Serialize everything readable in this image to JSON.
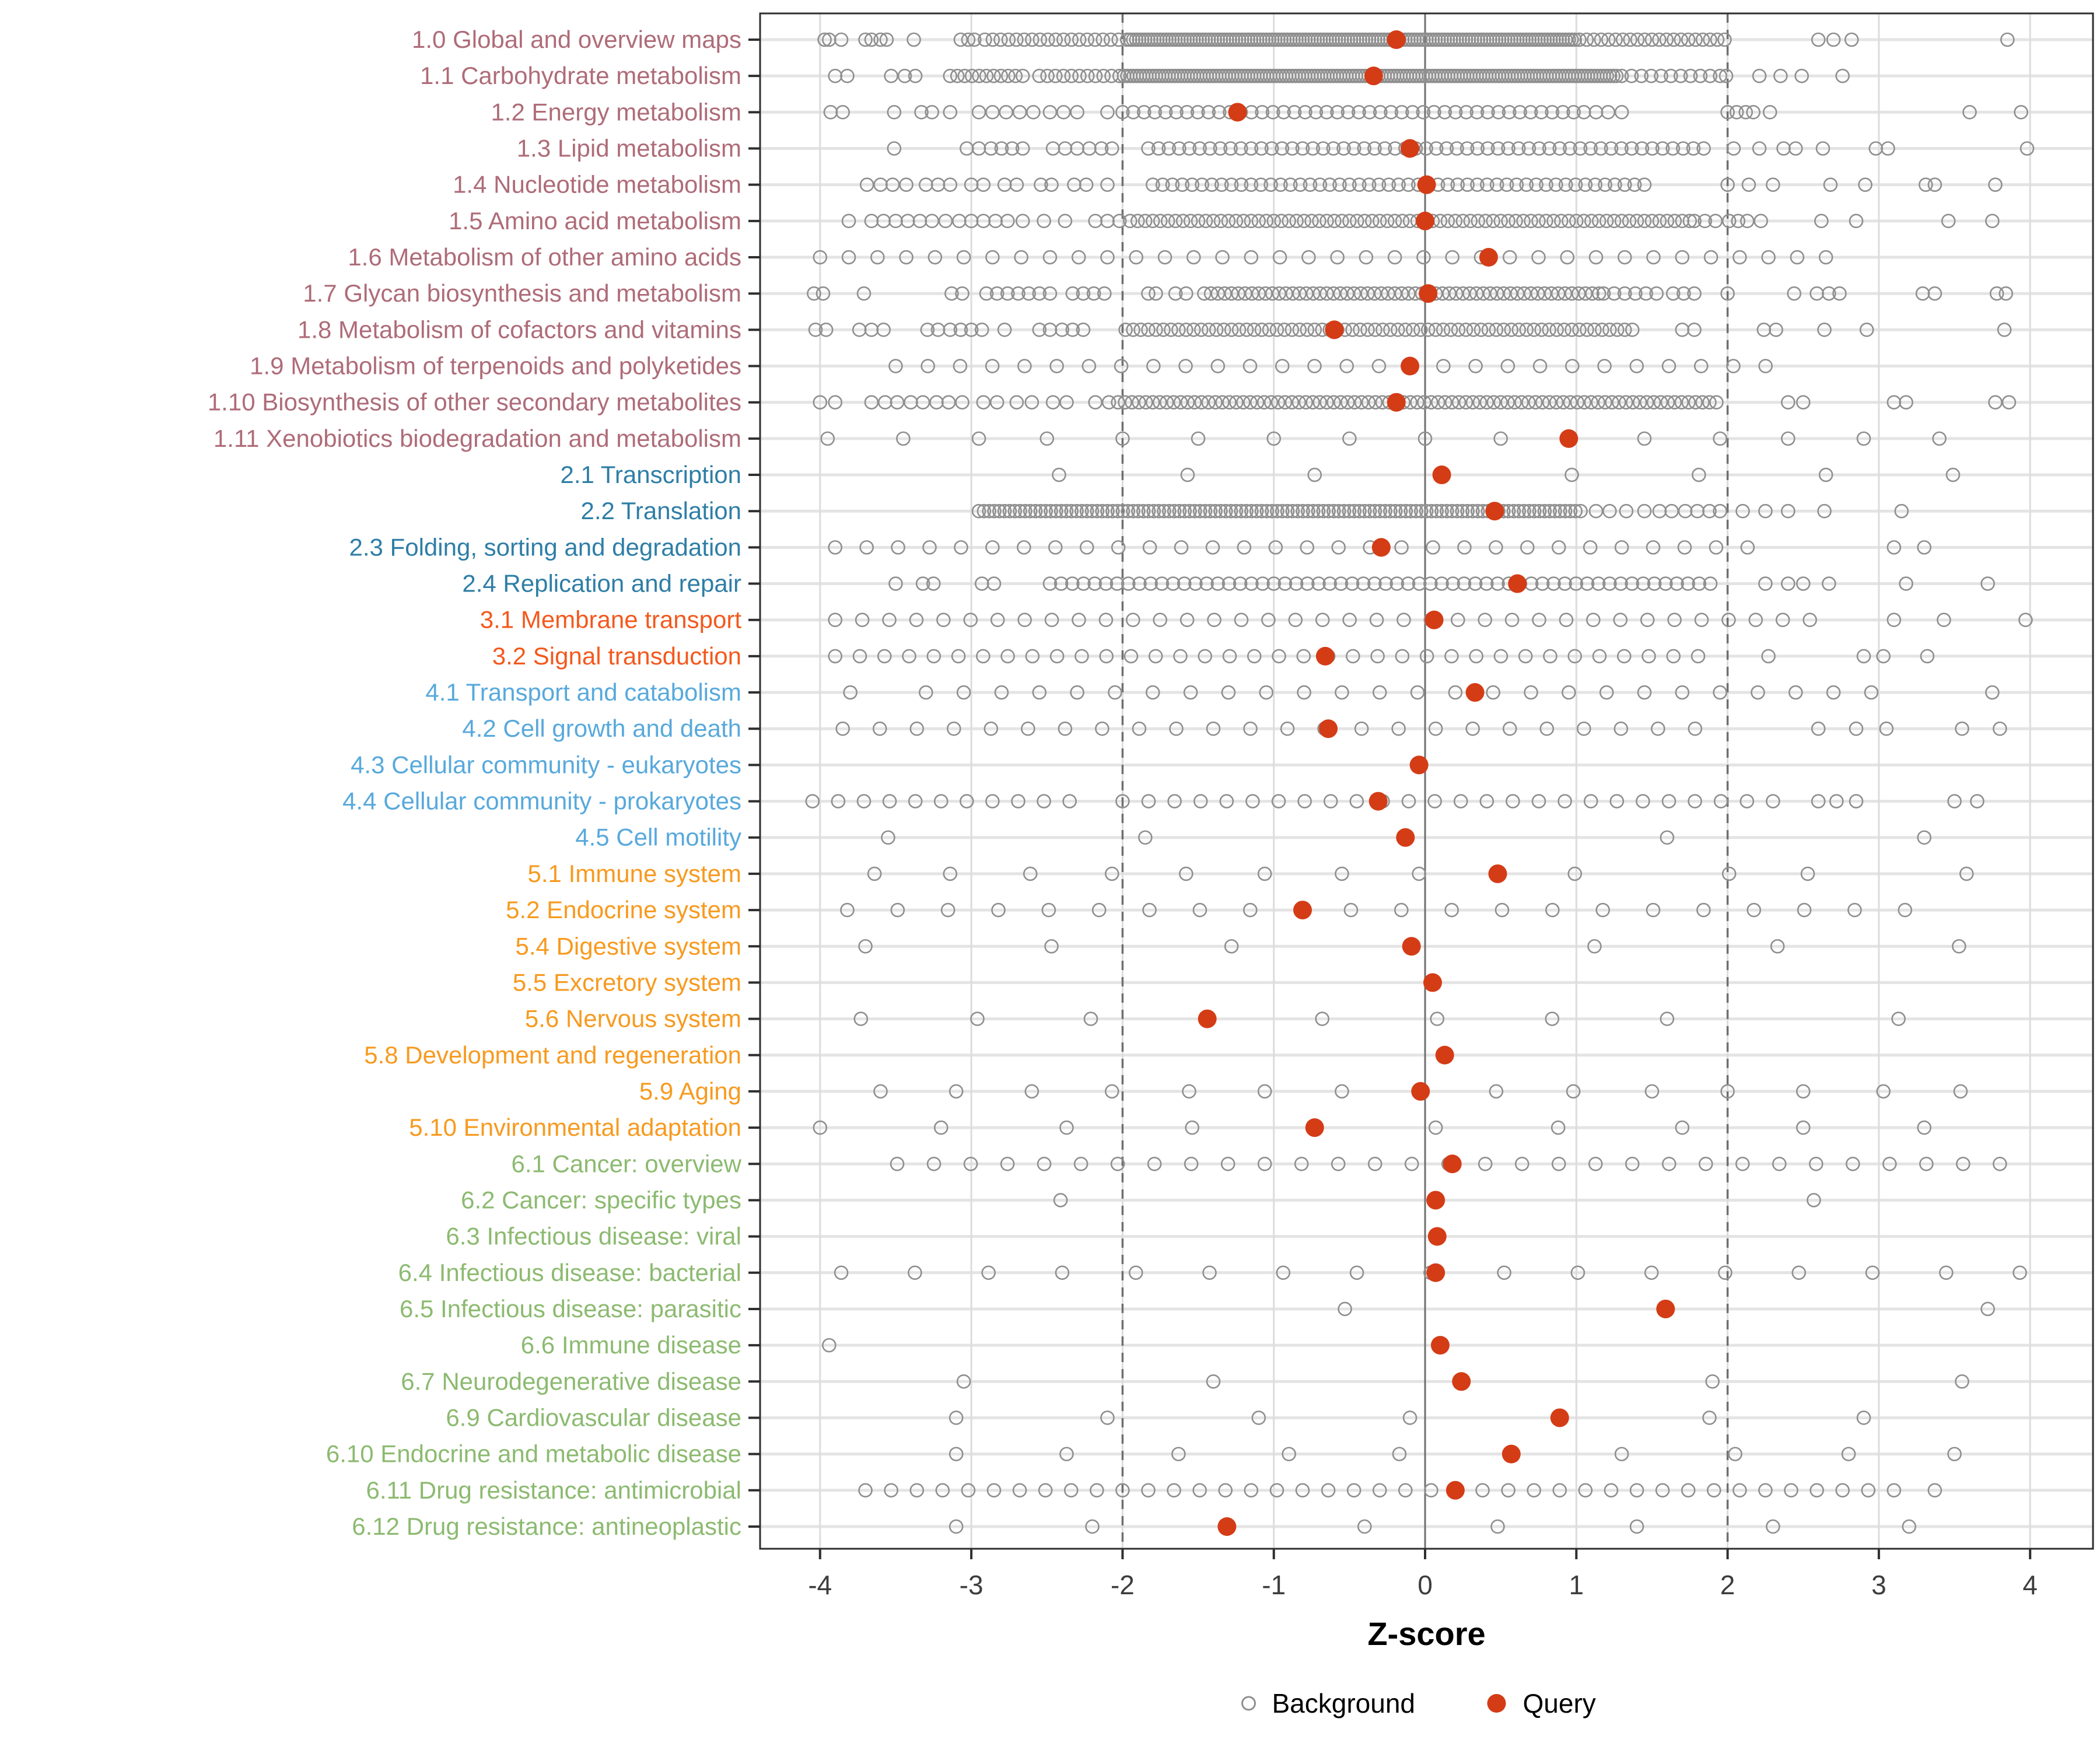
{
  "chart_data": {
    "type": "scatter",
    "title": "",
    "xlabel": "Z-score",
    "xlim": [
      -4.4,
      4.42
    ],
    "x_ticks": [
      -4,
      -3,
      -2,
      -1,
      0,
      1,
      2,
      3,
      4
    ],
    "grid": true,
    "reference_lines": {
      "solid_at": 0,
      "dashed_at": [
        -2,
        2
      ]
    },
    "legend_position": "bottom-center",
    "legend": [
      {
        "label": "Background",
        "marker": "open-circle",
        "color": "#8f8f8f"
      },
      {
        "label": "Query",
        "marker": "filled-circle",
        "color": "#d43c16"
      }
    ],
    "colors": {
      "query": "#d43c16",
      "background_stroke": "#8f8f8f",
      "grid_light": "#dcdcdc",
      "row_guide": "#e4e4e4",
      "reference_dark": "#6f6f6f",
      "panel_border": "#2f2f2f",
      "axis_text": "#3d3d3d"
    },
    "group_colors": {
      "metabolism": "#ae6c78",
      "genetic_information_processing": "#2e7ea6",
      "environmental_information_processing": "#f3591d",
      "cellular_processes": "#58a9dc",
      "organismal_systems": "#f79a1f",
      "human_diseases": "#8cba70"
    },
    "rows": [
      {
        "label": "1.0 Global and overview maps",
        "group": "metabolism",
        "query": -0.19,
        "bg_points": [
          -3.97,
          -3.94,
          -3.86,
          -3.7,
          -3.66,
          -3.6,
          -3.56,
          -3.38,
          -3.07,
          -3.02,
          -2.98,
          2.6,
          2.7,
          2.82,
          3.85
        ],
        "bg_bands": [
          [
            -2.91,
            -2.02,
            0.052
          ],
          [
            -1.97,
            1.0,
            0.02
          ],
          [
            1.02,
            1.98,
            0.048
          ]
        ]
      },
      {
        "label": "1.1 Carbohydrate metabolism",
        "group": "metabolism",
        "query": -0.34,
        "bg_points": [
          -3.9,
          -3.82,
          -3.53,
          -3.44,
          -3.37,
          1.99,
          2.21,
          2.35,
          2.49,
          2.76
        ],
        "bg_bands": [
          [
            -3.14,
            -2.66,
            0.048
          ],
          [
            -2.55,
            -2.02,
            0.053
          ],
          [
            -1.99,
            1.28,
            0.021
          ],
          [
            1.3,
            1.95,
            0.065
          ]
        ]
      },
      {
        "label": "1.2 Energy metabolism",
        "group": "metabolism",
        "query": -1.24,
        "bg_points": [
          -3.93,
          -3.85,
          -3.51,
          -3.33,
          -3.26,
          -3.14,
          -2.95,
          -2.86,
          -2.77,
          -2.68,
          -2.59,
          -2.48,
          -2.39,
          -2.3,
          -2.1,
          1.05,
          1.13,
          1.21,
          1.3,
          2.0,
          2.06,
          2.12,
          2.17,
          2.28,
          3.6,
          3.94
        ],
        "bg_bands": [
          [
            -2.0,
            1.0,
            0.071
          ]
        ]
      },
      {
        "label": "1.3 Lipid metabolism",
        "group": "metabolism",
        "query": -0.1,
        "bg_points": [
          -3.51,
          -3.03,
          -2.95,
          -2.87,
          -2.8,
          -2.73,
          -2.66,
          -2.46,
          -2.38,
          -2.3,
          -2.22,
          -2.14,
          -2.07,
          2.04,
          2.21,
          2.37,
          2.45,
          2.63,
          2.98,
          3.06,
          3.98
        ],
        "bg_bands": [
          [
            -1.83,
            1.9,
            0.068
          ]
        ]
      },
      {
        "label": "1.4 Nucleotide metabolism",
        "group": "metabolism",
        "query": 0.01,
        "bg_points": [
          -3.69,
          -3.6,
          -3.52,
          -3.43,
          -3.3,
          -3.22,
          -3.14,
          -3.0,
          -2.92,
          -2.78,
          -2.7,
          -2.54,
          -2.47,
          -2.32,
          -2.24,
          -2.1,
          2.0,
          2.14,
          2.3,
          2.68,
          2.91,
          3.31,
          3.37,
          3.77
        ],
        "bg_bands": [
          [
            -1.8,
            1.45,
            0.065
          ]
        ]
      },
      {
        "label": "1.5 Amino acid metabolism",
        "group": "metabolism",
        "query": 0.0,
        "bg_points": [
          -3.81,
          -3.66,
          -3.58,
          -3.5,
          -3.42,
          -3.34,
          -3.26,
          -3.17,
          -3.08,
          -3.0,
          -2.92,
          -2.84,
          -2.76,
          -2.66,
          -2.52,
          -2.38,
          -2.18,
          -2.1,
          -2.02,
          1.78,
          1.85,
          1.92,
          2.01,
          2.07,
          2.13,
          2.22,
          2.62,
          2.85,
          3.46,
          3.75
        ],
        "bg_bands": [
          [
            -1.95,
            1.75,
            0.05
          ]
        ]
      },
      {
        "label": "1.6 Metabolism of other amino acids",
        "group": "metabolism",
        "query": 0.42,
        "bg_points": [],
        "bg_bands": [
          [
            -4.0,
            2.68,
            0.19
          ]
        ]
      },
      {
        "label": "1.7 Glycan biosynthesis and metabolism",
        "group": "metabolism",
        "query": 0.02,
        "bg_points": [
          -4.04,
          -3.98,
          -3.71,
          -3.13,
          -3.06,
          -2.9,
          -2.83,
          -2.76,
          -2.69,
          -2.62,
          -2.55,
          -2.48,
          -2.33,
          -2.26,
          -2.19,
          -2.12,
          -1.83,
          -1.78,
          -1.65,
          -1.58,
          1.18,
          1.25,
          1.32,
          1.39,
          1.46,
          1.53,
          1.64,
          1.71,
          1.78,
          2.0,
          2.44,
          2.59,
          2.67,
          2.74,
          3.29,
          3.37,
          3.78,
          3.84
        ],
        "bg_bands": [
          [
            -1.46,
            1.16,
            0.045
          ]
        ]
      },
      {
        "label": "1.8 Metabolism of cofactors and vitamins",
        "group": "metabolism",
        "query": -0.6,
        "bg_points": [
          -4.03,
          -3.96,
          -3.74,
          -3.66,
          -3.58,
          -3.29,
          -3.22,
          -3.14,
          -3.07,
          -3.0,
          -2.93,
          -2.78,
          -2.55,
          -2.48,
          -2.4,
          -2.33,
          -2.26,
          1.7,
          1.78,
          2.24,
          2.32,
          2.64,
          2.92,
          3.83
        ],
        "bg_bands": [
          [
            -1.98,
            1.4,
            0.05
          ]
        ]
      },
      {
        "label": "1.9 Metabolism of terpenoids and polyketides",
        "group": "metabolism",
        "query": -0.1,
        "bg_points": [],
        "bg_bands": [
          [
            -3.5,
            2.35,
            0.213
          ]
        ]
      },
      {
        "label": "1.10 Biosynthesis of other secondary metabolites",
        "group": "metabolism",
        "query": -0.19,
        "bg_points": [
          -4.0,
          -3.9,
          -3.66,
          -3.57,
          -3.49,
          -3.4,
          -3.32,
          -3.23,
          -3.15,
          -3.06,
          -2.92,
          -2.83,
          -2.7,
          -2.6,
          -2.46,
          -2.37,
          -2.18,
          -2.09,
          2.4,
          2.5,
          3.1,
          3.18,
          3.77,
          3.86
        ],
        "bg_bands": [
          [
            -2.03,
            1.95,
            0.046
          ]
        ]
      },
      {
        "label": "1.11 Xenobiotics biodegradation and metabolism",
        "group": "metabolism",
        "query": 0.95,
        "bg_points": [
          -3.95,
          -3.45,
          -2.95,
          -2.5,
          -2.0,
          -1.5,
          -1.0,
          -0.5,
          0.0,
          0.5,
          1.45,
          1.95,
          2.4,
          2.9,
          3.4
        ],
        "bg_bands": []
      },
      {
        "label": "2.1 Transcription",
        "group": "genetic_information_processing",
        "query": 0.11,
        "bg_points": [
          -2.42,
          -1.57,
          -0.73,
          0.97,
          1.81,
          2.65,
          3.49
        ],
        "bg_bands": []
      },
      {
        "label": "2.2 Translation",
        "group": "genetic_information_processing",
        "query": 0.46,
        "bg_points": [
          1.13,
          1.22,
          1.33,
          1.45,
          1.55,
          1.63,
          1.72,
          1.8,
          1.88,
          1.95,
          2.1,
          2.25,
          2.4,
          2.64,
          3.15
        ],
        "bg_bands": [
          [
            -2.95,
            1.05,
            0.034
          ]
        ]
      },
      {
        "label": "2.3 Folding, sorting and degradation",
        "group": "genetic_information_processing",
        "query": -0.29,
        "bg_points": [
          3.1,
          3.3
        ],
        "bg_bands": [
          [
            -3.9,
            2.3,
            0.208
          ]
        ]
      },
      {
        "label": "2.4 Replication and repair",
        "group": "genetic_information_processing",
        "query": 0.61,
        "bg_points": [
          -3.5,
          -3.32,
          -3.25,
          -2.93,
          -2.85,
          2.25,
          2.4,
          2.5,
          2.67,
          3.18,
          3.72
        ],
        "bg_bands": [
          [
            -2.48,
            1.95,
            0.074
          ]
        ]
      },
      {
        "label": "3.1 Membrane transport",
        "group": "environmental_information_processing",
        "query": 0.06,
        "bg_points": [
          3.1,
          3.43,
          3.97
        ],
        "bg_bands": [
          [
            -3.9,
            2.55,
            0.179
          ]
        ]
      },
      {
        "label": "3.2 Signal transduction",
        "group": "environmental_information_processing",
        "query": -0.66,
        "bg_points": [
          2.27,
          2.9,
          3.03,
          3.32
        ],
        "bg_bands": [
          [
            -3.9,
            1.95,
            0.163
          ]
        ]
      },
      {
        "label": "4.1 Transport and catabolism",
        "group": "cellular_processes",
        "query": 0.33,
        "bg_points": [
          -3.8,
          3.75
        ],
        "bg_bands": [
          [
            -3.3,
            3.0,
            0.25
          ]
        ]
      },
      {
        "label": "4.2 Cell growth and death",
        "group": "cellular_processes",
        "query": -0.64,
        "bg_points": [
          2.6,
          2.85,
          3.05,
          3.55,
          3.8
        ],
        "bg_bands": [
          [
            -3.85,
            1.9,
            0.245
          ]
        ]
      },
      {
        "label": "4.3 Cellular community - eukaryotes",
        "group": "cellular_processes",
        "query": -0.04,
        "bg_points": [],
        "bg_bands": []
      },
      {
        "label": "4.4 Cellular community - prokaryotes",
        "group": "cellular_processes",
        "query": -0.31,
        "bg_points": [
          2.6,
          2.72,
          2.85,
          3.5,
          3.65
        ],
        "bg_bands": [
          [
            -4.05,
            -2.35,
            0.17
          ],
          [
            -2.0,
            2.3,
            0.172
          ]
        ]
      },
      {
        "label": "4.5 Cell motility",
        "group": "cellular_processes",
        "query": -0.13,
        "bg_points": [
          -3.55,
          -1.85,
          1.6,
          3.3
        ],
        "bg_bands": []
      },
      {
        "label": "5.1 Immune system",
        "group": "organismal_systems",
        "query": 0.48,
        "bg_points": [
          -3.64,
          -3.14,
          -2.61,
          -2.07,
          -1.58,
          -1.06,
          -0.55,
          -0.04,
          0.99,
          2.01,
          2.53,
          3.58
        ],
        "bg_bands": []
      },
      {
        "label": "5.2 Endocrine system",
        "group": "organismal_systems",
        "query": -0.81,
        "bg_points": [],
        "bg_bands": [
          [
            -3.82,
            3.5,
            0.333
          ]
        ]
      },
      {
        "label": "5.4 Digestive system",
        "group": "organismal_systems",
        "query": -0.09,
        "bg_points": [
          -3.7,
          -2.47,
          -1.28,
          1.12,
          2.33,
          3.53
        ],
        "bg_bands": []
      },
      {
        "label": "5.5 Excretory system",
        "group": "organismal_systems",
        "query": 0.05,
        "bg_points": [],
        "bg_bands": []
      },
      {
        "label": "5.6 Nervous system",
        "group": "organismal_systems",
        "query": -1.44,
        "bg_points": [
          -3.73,
          -2.96,
          -2.21,
          -0.68,
          0.08,
          0.84,
          1.6,
          3.13
        ],
        "bg_bands": []
      },
      {
        "label": "5.8 Development and regeneration",
        "group": "organismal_systems",
        "query": 0.13,
        "bg_points": [],
        "bg_bands": []
      },
      {
        "label": "5.9 Aging",
        "group": "organismal_systems",
        "query": -0.03,
        "bg_points": [
          -3.6,
          -3.1,
          -2.6,
          -2.07,
          -1.56,
          -1.06,
          -0.55,
          0.47,
          0.98,
          1.5,
          2.0,
          2.5,
          3.03,
          3.54
        ],
        "bg_bands": []
      },
      {
        "label": "5.10 Environmental adaptation",
        "group": "organismal_systems",
        "query": -0.73,
        "bg_points": [
          -4.0,
          -3.2,
          -2.37,
          -1.54,
          0.07,
          0.88,
          1.7,
          2.5,
          3.3
        ],
        "bg_bands": []
      },
      {
        "label": "6.1 Cancer: overview",
        "group": "human_diseases",
        "query": 0.18,
        "bg_points": [],
        "bg_bands": [
          [
            -3.49,
            3.8,
            0.243
          ]
        ]
      },
      {
        "label": "6.2 Cancer: specific types",
        "group": "human_diseases",
        "query": 0.07,
        "bg_points": [
          -2.41,
          2.57
        ],
        "bg_bands": []
      },
      {
        "label": "6.3 Infectious disease: viral",
        "group": "human_diseases",
        "query": 0.08,
        "bg_points": [],
        "bg_bands": []
      },
      {
        "label": "6.4 Infectious disease: bacterial",
        "group": "human_diseases",
        "query": 0.07,
        "bg_points": [],
        "bg_bands": [
          [
            -3.86,
            3.96,
            0.487
          ]
        ]
      },
      {
        "label": "6.5 Infectious disease: parasitic",
        "group": "human_diseases",
        "query": 1.59,
        "bg_points": [
          -0.53,
          3.72
        ],
        "bg_bands": []
      },
      {
        "label": "6.6 Immune disease",
        "group": "human_diseases",
        "query": 0.1,
        "bg_points": [
          -3.94
        ],
        "bg_bands": []
      },
      {
        "label": "6.7 Neurodegenerative disease",
        "group": "human_diseases",
        "query": 0.24,
        "bg_points": [
          -3.05,
          -1.4,
          1.9,
          3.55
        ],
        "bg_bands": []
      },
      {
        "label": "6.9 Cardiovascular disease",
        "group": "human_diseases",
        "query": 0.89,
        "bg_points": [
          -3.1,
          -2.1,
          -1.1,
          -0.1,
          1.88,
          2.9
        ],
        "bg_bands": []
      },
      {
        "label": "6.10 Endocrine and metabolic disease",
        "group": "human_diseases",
        "query": 0.57,
        "bg_points": [
          -3.1,
          -2.37,
          -1.63,
          -0.9,
          -0.17,
          1.3,
          2.05,
          2.8,
          3.5
        ],
        "bg_bands": []
      },
      {
        "label": "6.11 Drug resistance: antimicrobial",
        "group": "human_diseases",
        "query": 0.2,
        "bg_points": [
          3.37
        ],
        "bg_bands": [
          [
            -3.7,
            3.1,
            0.17
          ]
        ]
      },
      {
        "label": "6.12 Drug resistance: antineoplastic",
        "group": "human_diseases",
        "query": -1.31,
        "bg_points": [
          -3.1,
          -2.2,
          -0.4,
          0.48,
          1.4,
          2.3,
          3.2
        ],
        "bg_bands": []
      }
    ]
  }
}
